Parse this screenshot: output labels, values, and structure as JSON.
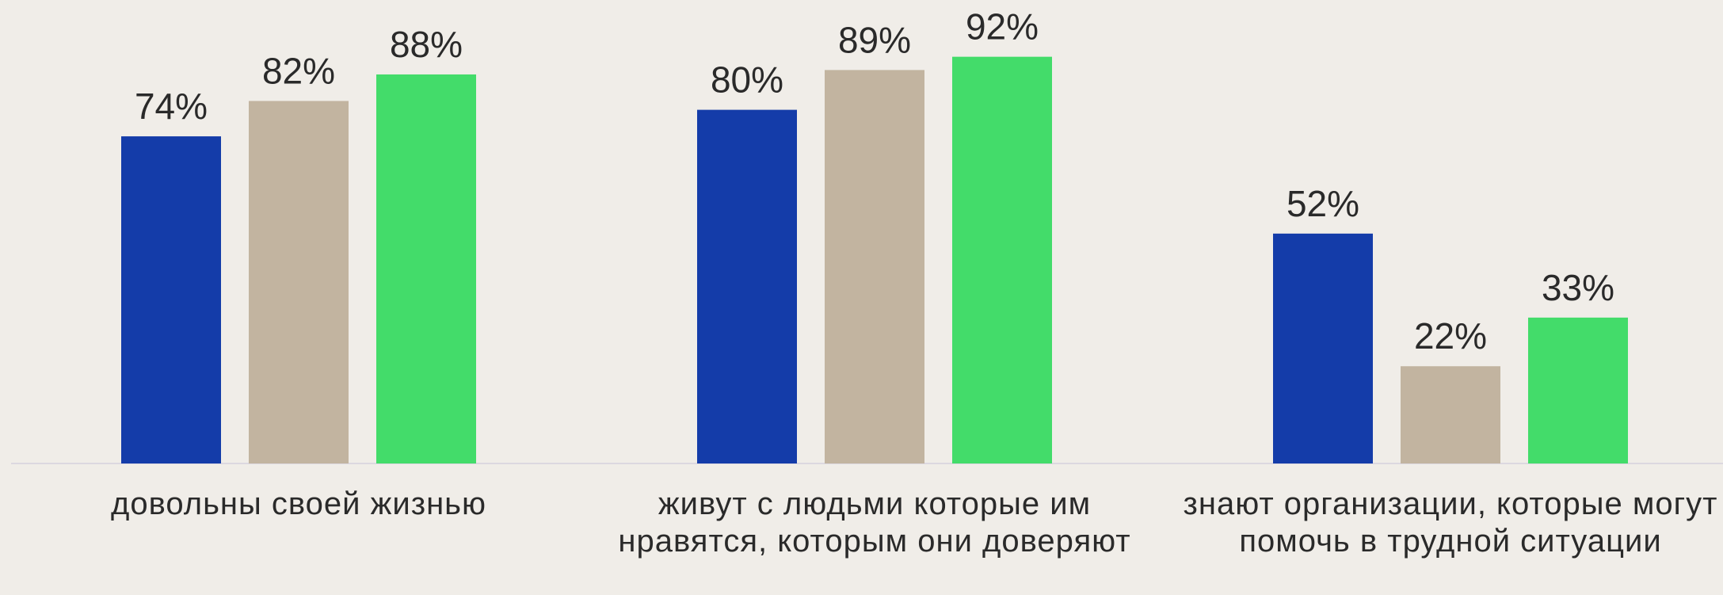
{
  "chart_data": {
    "type": "bar",
    "categories": [
      "довольны своей жизнью",
      "живут с людьми которые им нравятся, которым они доверяют",
      "знают организации, которые могут помочь в трудной ситуации"
    ],
    "series": [
      {
        "color": "#143ca9",
        "values": [
          74,
          80,
          52
        ],
        "value_labels": [
          "74%",
          "80%",
          "52%"
        ]
      },
      {
        "color": "#c2b4a0",
        "values": [
          82,
          89,
          22
        ],
        "value_labels": [
          "82%",
          "89%",
          "22%"
        ]
      },
      {
        "color": "#43dc6a",
        "values": [
          88,
          92,
          33
        ],
        "value_labels": [
          "88%",
          "92%",
          "33%"
        ]
      }
    ],
    "ylim": [
      0,
      100
    ]
  }
}
